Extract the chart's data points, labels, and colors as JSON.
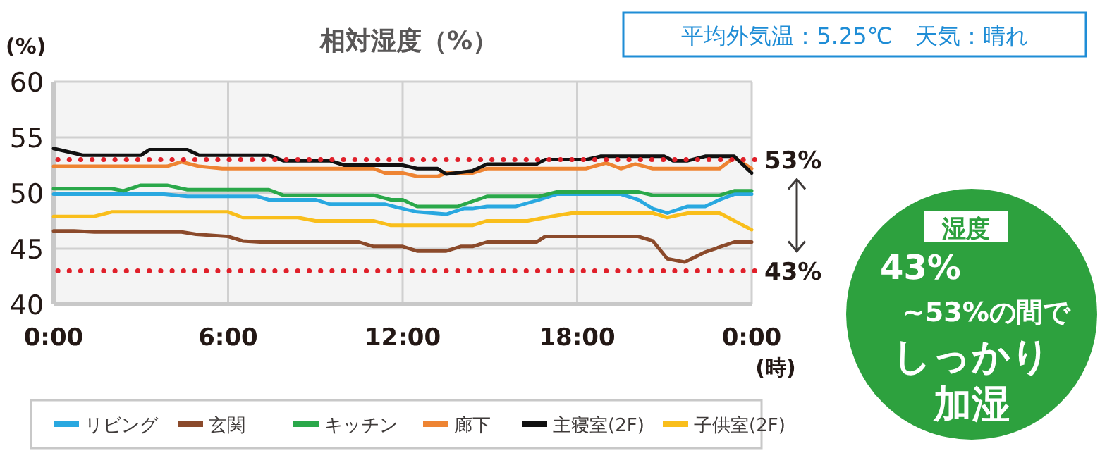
{
  "chart_data": {
    "type": "line",
    "title": "相対湿度（%）",
    "ylabel": "(%)",
    "xlabel": "(時)",
    "xlim": [
      0,
      24
    ],
    "ylim": [
      40,
      60
    ],
    "xticks": [
      {
        "value": 0,
        "label": "0:00"
      },
      {
        "value": 6,
        "label": "6:00"
      },
      {
        "value": 12,
        "label": "12:00"
      },
      {
        "value": 18,
        "label": "18:00"
      },
      {
        "value": 24,
        "label": "0:00"
      }
    ],
    "yticks": [
      40,
      45,
      50,
      55,
      60
    ],
    "grid": true,
    "legend": "bottom",
    "marker": "none",
    "line_style": "solid",
    "series": [
      {
        "name": "リビング",
        "color": "#29a8e0",
        "x": [
          0,
          3.8,
          4.6,
          7,
          7.4,
          9,
          9.5,
          11.4,
          12,
          12.5,
          13.5,
          14.1,
          14.4,
          14.9,
          15.9,
          16.7,
          17.3,
          19.5,
          20.1,
          20.6,
          21.1,
          21.8,
          22.4,
          22.9,
          23.4,
          24
        ],
        "values": [
          49.9,
          49.9,
          49.7,
          49.7,
          49.4,
          49.4,
          49.0,
          49.0,
          48.6,
          48.3,
          48.1,
          48.6,
          48.6,
          48.8,
          48.8,
          49.4,
          49.9,
          49.9,
          49.4,
          48.6,
          48.2,
          48.8,
          48.8,
          49.4,
          49.9,
          49.9
        ]
      },
      {
        "name": "玄関",
        "color": "#8b4a2b",
        "x": [
          0,
          0.7,
          1.4,
          4.4,
          4.9,
          6,
          6.5,
          7.1,
          10.5,
          11,
          12,
          12.5,
          13.5,
          14,
          14.4,
          14.9,
          16.6,
          16.9,
          20.1,
          20.6,
          21.1,
          21.7,
          22.4,
          23.4,
          24
        ],
        "values": [
          46.6,
          46.6,
          46.5,
          46.5,
          46.3,
          46.1,
          45.7,
          45.6,
          45.6,
          45.2,
          45.2,
          44.8,
          44.8,
          45.2,
          45.2,
          45.6,
          45.6,
          46.1,
          46.1,
          45.7,
          44.1,
          43.8,
          44.7,
          45.6,
          45.6
        ]
      },
      {
        "name": "キッチン",
        "color": "#2aa84a",
        "x": [
          0,
          2,
          2.4,
          3,
          3.9,
          4.6,
          7.4,
          7.9,
          11,
          11.6,
          12,
          12.5,
          13.9,
          14.9,
          16.7,
          17.3,
          20.1,
          20.6,
          22.9,
          23.4,
          24
        ],
        "values": [
          50.4,
          50.4,
          50.2,
          50.7,
          50.7,
          50.3,
          50.3,
          49.8,
          49.8,
          49.4,
          49.4,
          48.8,
          48.8,
          49.7,
          49.7,
          50.1,
          50.1,
          49.8,
          49.8,
          50.2,
          50.2
        ]
      },
      {
        "name": "廊下",
        "color": "#ee8433",
        "x": [
          0,
          3.9,
          4.4,
          5,
          5.8,
          11,
          11.4,
          12,
          12.5,
          13.2,
          13.5,
          14.4,
          14.9,
          18.3,
          19,
          19.5,
          20,
          20.6,
          22.9,
          23.4,
          24
        ],
        "values": [
          52.4,
          52.4,
          52.8,
          52.4,
          52.2,
          52.2,
          51.8,
          51.8,
          51.5,
          51.5,
          51.8,
          51.8,
          52.2,
          52.2,
          52.7,
          52.2,
          52.6,
          52.2,
          52.2,
          53.2,
          52.2
        ]
      },
      {
        "name": "主寝室(2F)",
        "color": "#111111",
        "x": [
          0,
          1,
          3,
          3.3,
          4.6,
          5,
          7.4,
          7.9,
          9.5,
          10,
          12,
          12.5,
          13.2,
          13.5,
          14.4,
          14.9,
          16.6,
          16.9,
          18.3,
          18.8,
          21,
          21.3,
          21.8,
          22.4,
          23.4,
          24
        ],
        "values": [
          54.0,
          53.4,
          53.4,
          53.9,
          53.9,
          53.4,
          53.4,
          52.9,
          52.9,
          52.5,
          52.5,
          52.2,
          52.2,
          51.7,
          52.0,
          52.6,
          52.6,
          53.0,
          53.0,
          53.3,
          53.3,
          52.9,
          52.9,
          53.3,
          53.3,
          51.8
        ]
      },
      {
        "name": "子供室(2F)",
        "color": "#f9be1b",
        "x": [
          0,
          1.4,
          2,
          3,
          6,
          6.5,
          8.4,
          9,
          11,
          11.6,
          12,
          14.4,
          14.9,
          16.3,
          16.9,
          17.8,
          20.6,
          21.1,
          21.8,
          22.9,
          24
        ],
        "values": [
          47.9,
          47.9,
          48.3,
          48.3,
          48.3,
          47.8,
          47.8,
          47.5,
          47.5,
          47.1,
          47.1,
          47.1,
          47.5,
          47.5,
          47.8,
          48.2,
          48.2,
          47.8,
          48.2,
          48.2,
          46.7
        ]
      }
    ],
    "ref_lines": [
      {
        "axis": "y",
        "value": 53,
        "label": "53%",
        "color": "#e0202a",
        "line_style": "dotted"
      },
      {
        "axis": "y",
        "value": 43,
        "label": "43%",
        "color": "#e0202a",
        "line_style": "dotted"
      }
    ],
    "annotations": [
      "平均外気温：5.25℃　天気：晴れ",
      "湿度",
      "43%",
      "~53%の間で",
      "しっかり",
      "加湿"
    ]
  }
}
